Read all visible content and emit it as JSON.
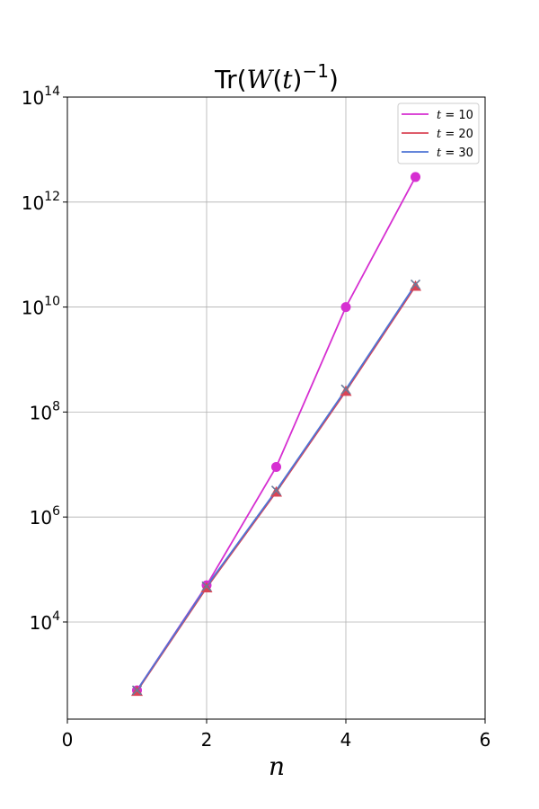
{
  "chart_data": {
    "type": "line",
    "title": "Tr(W(t)^{-1})",
    "xlabel": "n",
    "ylabel": "",
    "xlim": [
      0,
      6
    ],
    "ylim_log10": [
      2.15,
      14
    ],
    "y_scale": "log",
    "grid": true,
    "legend_position": "top-right",
    "x_ticks": [
      0,
      2,
      4,
      6
    ],
    "y_ticks_exponent": [
      4,
      6,
      8,
      10,
      12,
      14
    ],
    "y_tick_base": "10",
    "series": [
      {
        "name": "t = 10",
        "legend_lhs": "t",
        "legend_rhs": "10",
        "color": "#d62fd1",
        "marker": "circle",
        "x": [
          1,
          2,
          3,
          4,
          5
        ],
        "y": [
          500,
          50000,
          9000000,
          10000000000,
          3000000000000
        ]
      },
      {
        "name": "t = 20",
        "legend_lhs": "t",
        "legend_rhs": "20",
        "color": "#d94456",
        "marker": "triangle",
        "x": [
          1,
          2,
          3,
          4,
          5
        ],
        "y": [
          480,
          45000,
          3000000,
          250000000,
          25000000000
        ]
      },
      {
        "name": "t = 30",
        "legend_lhs": "t",
        "legend_rhs": "30",
        "color": "#4f74d4",
        "marker": "x",
        "x": [
          1,
          2,
          3,
          4,
          5
        ],
        "y": [
          500,
          48000,
          3200000,
          270000000,
          27000000000
        ]
      }
    ]
  }
}
